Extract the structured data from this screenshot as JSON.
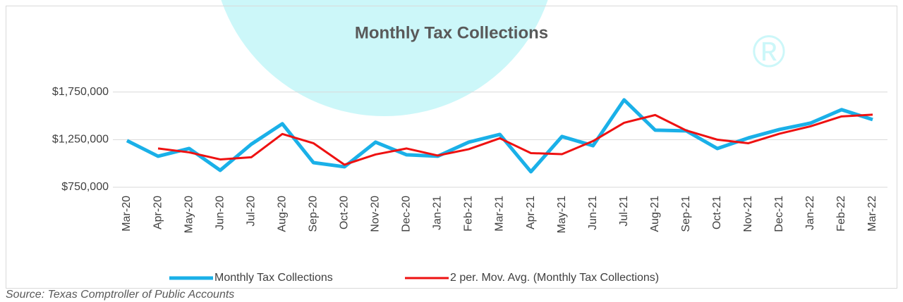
{
  "chart_data": {
    "type": "line",
    "title": "Monthly Tax Collections",
    "source": "Source: Texas Comptroller of Public Accounts",
    "watermark": "®",
    "categories": [
      "Mar-20",
      "Apr-20",
      "May-20",
      "Jun-20",
      "Jul-20",
      "Aug-20",
      "Sep-20",
      "Oct-20",
      "Nov-20",
      "Dec-20",
      "Jan-21",
      "Feb-21",
      "Mar-21",
      "Apr-21",
      "May-21",
      "Jun-21",
      "Jul-21",
      "Aug-21",
      "Sep-21",
      "Oct-21",
      "Nov-21",
      "Dec-21",
      "Jan-22",
      "Feb-22",
      "Mar-22"
    ],
    "series": [
      {
        "name": "Monthly Tax Collections",
        "color": "#1ab0e8",
        "width": 5,
        "values": [
          1240000,
          1076000,
          1157000,
          928000,
          1202000,
          1417000,
          1009000,
          965000,
          1224000,
          1091000,
          1076000,
          1224000,
          1305000,
          913000,
          1283000,
          1187000,
          1668000,
          1350000,
          1343000,
          1157000,
          1268000,
          1357000,
          1424000,
          1565000,
          1461000
        ]
      },
      {
        "name": "2 per. Mov. Avg. (Monthly Tax Collections)",
        "color": "#ee1111",
        "width": 3,
        "values": [
          null,
          1158000,
          1116500,
          1042500,
          1065000,
          1309500,
          1213000,
          987000,
          1094500,
          1157500,
          1083500,
          1150000,
          1264500,
          1109000,
          1098000,
          1235000,
          1427500,
          1509000,
          1346500,
          1250000,
          1212500,
          1312500,
          1390500,
          1494500,
          1513000
        ]
      }
    ],
    "ylim": [
      750000,
      2000000
    ],
    "yticks": [
      {
        "value": 750000,
        "label": "$750,000"
      },
      {
        "value": 1250000,
        "label": "$1,250,000"
      },
      {
        "value": 1750000,
        "label": "$1,750,000"
      }
    ],
    "grid": true
  }
}
